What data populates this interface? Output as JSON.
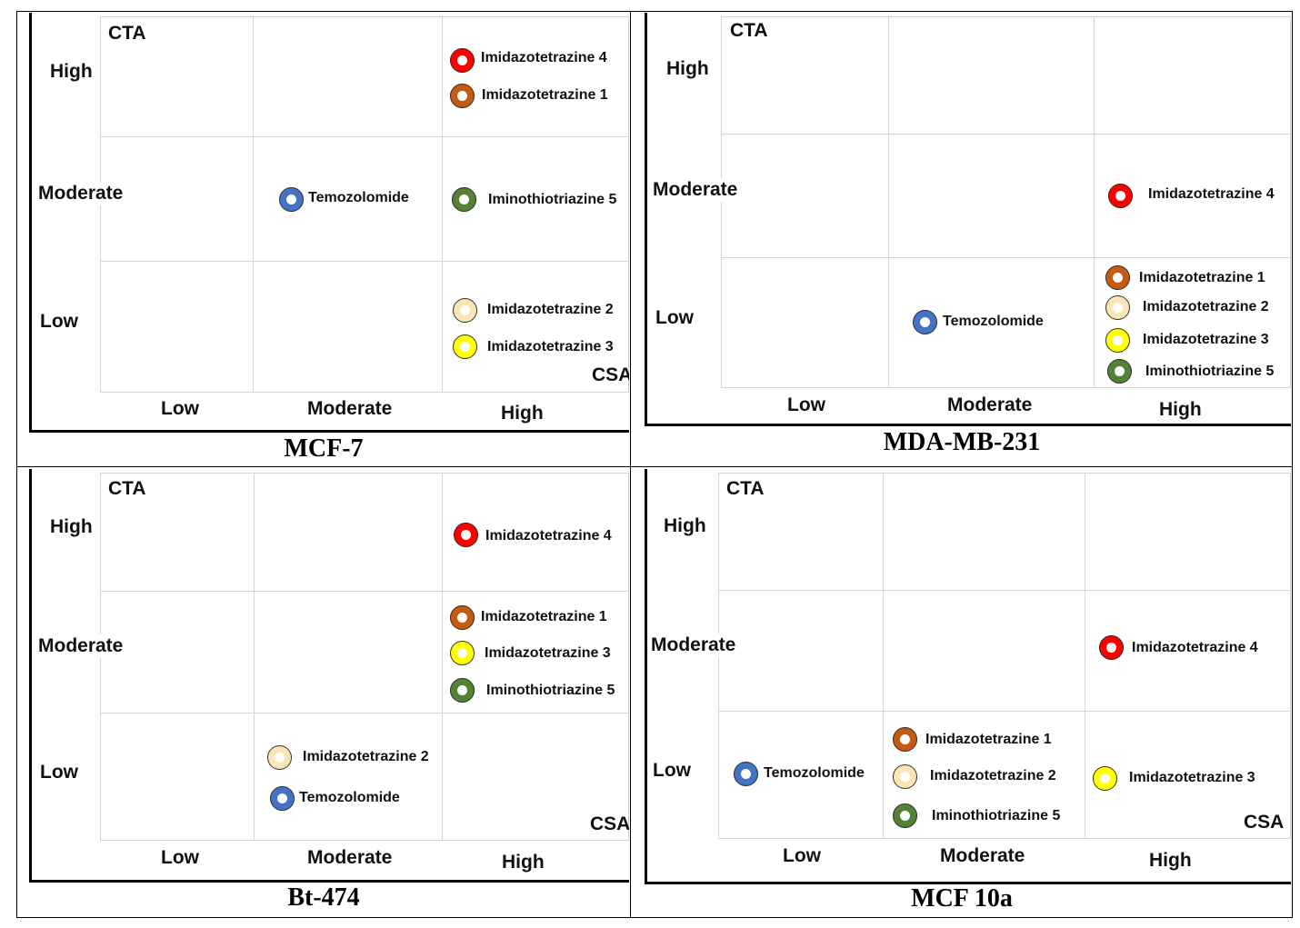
{
  "legend_colors": {
    "Temozolomide": "#4472c4",
    "Imidazotetrazine 1": "#c55a11",
    "Imidazotetrazine 2": "#fbe5b4",
    "Imidazotetrazine 3": "#ffff00",
    "Imidazotetrazine 4": "#ff0000",
    "Iminothiotriazine 5": "#548235"
  },
  "chart_data": [
    {
      "type": "scatter",
      "title": "MCF-7",
      "xlabel": "CSA",
      "ylabel": "CTA",
      "x_categories": [
        "Low",
        "Moderate",
        "High"
      ],
      "y_categories": [
        "Low",
        "Moderate",
        "High"
      ],
      "points": [
        {
          "label": "Imidazotetrazine 4",
          "x": "High",
          "y": "High"
        },
        {
          "label": "Imidazotetrazine 1",
          "x": "High",
          "y": "High"
        },
        {
          "label": "Temozolomide",
          "x": "Moderate",
          "y": "Moderate"
        },
        {
          "label": "Iminothiotriazine  5",
          "x": "High",
          "y": "Moderate"
        },
        {
          "label": "Imidazotetrazine 2",
          "x": "High",
          "y": "Low"
        },
        {
          "label": "Imidazotetrazine 3",
          "x": "High",
          "y": "Low"
        }
      ]
    },
    {
      "type": "scatter",
      "title": "MDA-MB-231",
      "xlabel": "",
      "ylabel": "CTA",
      "x_categories": [
        "Low",
        "Moderate",
        "High"
      ],
      "y_categories": [
        "Low",
        "Moderate",
        "High"
      ],
      "points": [
        {
          "label": "Imidazotetrazine 4",
          "x": "High",
          "y": "Moderate"
        },
        {
          "label": "Temozolomide",
          "x": "Moderate",
          "y": "Low"
        },
        {
          "label": "Imidazotetrazine 1",
          "x": "High",
          "y": "Low"
        },
        {
          "label": "Imidazotetrazine 2",
          "x": "High",
          "y": "Low"
        },
        {
          "label": "Imidazotetrazine 3",
          "x": "High",
          "y": "Low"
        },
        {
          "label": "Iminothiotriazine  5",
          "x": "High",
          "y": "Low"
        }
      ]
    },
    {
      "type": "scatter",
      "title": "Bt-474",
      "xlabel": "CSA",
      "ylabel": "CTA",
      "x_categories": [
        "Low",
        "Moderate",
        "High"
      ],
      "y_categories": [
        "Low",
        "Moderate",
        "High"
      ],
      "points": [
        {
          "label": "Imidazotetrazine 4",
          "x": "High",
          "y": "High"
        },
        {
          "label": "Imidazotetrazine 1",
          "x": "High",
          "y": "Moderate"
        },
        {
          "label": "Imidazotetrazine 3",
          "x": "High",
          "y": "Moderate"
        },
        {
          "label": "Iminothiotriazine  5",
          "x": "High",
          "y": "Moderate"
        },
        {
          "label": "Imidazotetrazine 2",
          "x": "Moderate",
          "y": "Low"
        },
        {
          "label": "Temozolomide",
          "x": "Moderate",
          "y": "Low"
        }
      ]
    },
    {
      "type": "scatter",
      "title": "MCF 10a",
      "xlabel": "CSA",
      "ylabel": "CTA",
      "x_categories": [
        "Low",
        "Moderate",
        "High"
      ],
      "y_categories": [
        "Low",
        "Moderate",
        "High"
      ],
      "points": [
        {
          "label": "Imidazotetrazine 4",
          "x": "High",
          "y": "Moderate"
        },
        {
          "label": "Temozolomide",
          "x": "Low",
          "y": "Low"
        },
        {
          "label": "Imidazotetrazine 1",
          "x": "Moderate",
          "y": "Low"
        },
        {
          "label": "Imidazotetrazine 2",
          "x": "Moderate",
          "y": "Low"
        },
        {
          "label": "Iminothiotriazine  5",
          "x": "Moderate",
          "y": "Low"
        },
        {
          "label": "Imidazotetrazine 3",
          "x": "High",
          "y": "Low"
        }
      ]
    }
  ]
}
